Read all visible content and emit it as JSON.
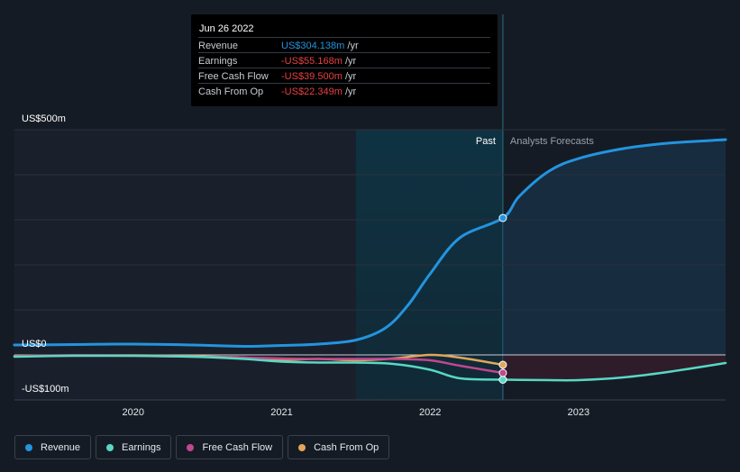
{
  "tooltip": {
    "date": "Jun 26 2022",
    "rows": [
      {
        "label": "Revenue",
        "value": "US$304.138m",
        "unit": "/yr",
        "color": "#2394df"
      },
      {
        "label": "Earnings",
        "value": "-US$55.168m",
        "unit": "/yr",
        "color": "#e64141"
      },
      {
        "label": "Free Cash Flow",
        "value": "-US$39.500m",
        "unit": "/yr",
        "color": "#e64141"
      },
      {
        "label": "Cash From Op",
        "value": "-US$22.349m",
        "unit": "/yr",
        "color": "#e64141"
      }
    ]
  },
  "labels": {
    "past": "Past",
    "forecast": "Analysts Forecasts"
  },
  "legend": [
    {
      "label": "Revenue",
      "color": "#2394df"
    },
    {
      "label": "Earnings",
      "color": "#58d8c5"
    },
    {
      "label": "Free Cash Flow",
      "color": "#c2478f"
    },
    {
      "label": "Cash From Op",
      "color": "#e0a75a"
    }
  ],
  "chart_data": {
    "type": "line",
    "y_tick_labels": [
      "US$500m",
      "US$0",
      "-US$100m"
    ],
    "x_tick_labels": [
      "2020",
      "2021",
      "2022",
      "2023"
    ],
    "y_ticks": [
      500,
      0,
      -100
    ],
    "x_ticks": [
      2020,
      2021,
      2022,
      2023
    ],
    "ylim": [
      -100,
      500
    ],
    "xlim": [
      2019.2,
      2023.99
    ],
    "past_region": [
      2021.5,
      2022.49
    ],
    "highlight_x": 2022.49,
    "series": [
      {
        "name": "Revenue",
        "color": "#2394df",
        "points": [
          [
            2019.2,
            22
          ],
          [
            2019.6,
            23
          ],
          [
            2020,
            24
          ],
          [
            2020.4,
            22
          ],
          [
            2020.75,
            19
          ],
          [
            2021,
            21
          ],
          [
            2021.25,
            24
          ],
          [
            2021.5,
            33
          ],
          [
            2021.7,
            60
          ],
          [
            2021.85,
            110
          ],
          [
            2022,
            180
          ],
          [
            2022.2,
            260
          ],
          [
            2022.49,
            304
          ],
          [
            2022.6,
            352
          ],
          [
            2022.8,
            408
          ],
          [
            2023,
            436
          ],
          [
            2023.3,
            458
          ],
          [
            2023.6,
            470
          ],
          [
            2023.99,
            478
          ]
        ]
      },
      {
        "name": "Earnings",
        "color": "#58d8c5",
        "points": [
          [
            2019.2,
            -4
          ],
          [
            2019.6,
            -2
          ],
          [
            2020,
            -2
          ],
          [
            2020.4,
            -4
          ],
          [
            2020.75,
            -9
          ],
          [
            2021,
            -15
          ],
          [
            2021.25,
            -17
          ],
          [
            2021.5,
            -17
          ],
          [
            2021.75,
            -20
          ],
          [
            2022,
            -33
          ],
          [
            2022.2,
            -52
          ],
          [
            2022.49,
            -55
          ],
          [
            2022.8,
            -56
          ],
          [
            2023,
            -56
          ],
          [
            2023.3,
            -50
          ],
          [
            2023.6,
            -38
          ],
          [
            2023.99,
            -18
          ]
        ]
      },
      {
        "name": "Free Cash Flow",
        "color": "#c2478f",
        "points": [
          [
            2019.2,
            -3
          ],
          [
            2019.6,
            -1
          ],
          [
            2020,
            -2
          ],
          [
            2020.4,
            -4
          ],
          [
            2020.75,
            -6
          ],
          [
            2021,
            -8
          ],
          [
            2021.25,
            -9
          ],
          [
            2021.5,
            -9
          ],
          [
            2021.75,
            -9
          ],
          [
            2022,
            -12
          ],
          [
            2022.2,
            -24
          ],
          [
            2022.49,
            -40
          ]
        ]
      },
      {
        "name": "Cash From Op",
        "color": "#e0a75a",
        "points": [
          [
            2019.2,
            -2
          ],
          [
            2019.6,
            -1
          ],
          [
            2020,
            -1
          ],
          [
            2020.4,
            -3
          ],
          [
            2020.75,
            -6
          ],
          [
            2021,
            -11
          ],
          [
            2021.25,
            -9
          ],
          [
            2021.5,
            -12
          ],
          [
            2021.75,
            -8
          ],
          [
            2022,
            0
          ],
          [
            2022.2,
            -6
          ],
          [
            2022.49,
            -22
          ]
        ]
      }
    ]
  }
}
